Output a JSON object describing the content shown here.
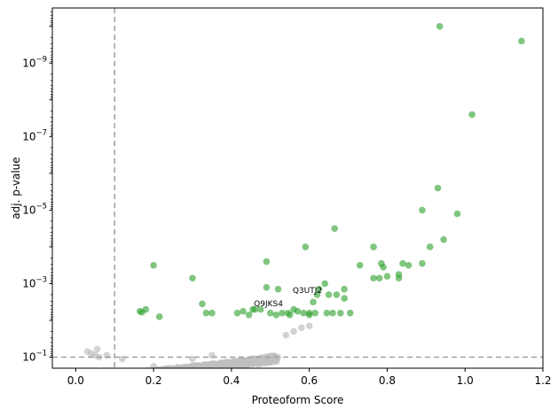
{
  "chart_data": {
    "type": "scatter",
    "title": "",
    "xlabel": "Proteoform Score",
    "ylabel": "adj. p-value",
    "xlim": [
      -0.06,
      1.2
    ],
    "ylim_log10": [
      -0.7,
      -10.5
    ],
    "y_scale": "log",
    "y_inverted": true,
    "grid": false,
    "x_ticks": [
      {
        "value": 0.0,
        "label": "0.0"
      },
      {
        "value": 0.2,
        "label": "0.2"
      },
      {
        "value": 0.4,
        "label": "0.4"
      },
      {
        "value": 0.6,
        "label": "0.6"
      },
      {
        "value": 0.8,
        "label": "0.8"
      },
      {
        "value": 1.0,
        "label": "1.0"
      },
      {
        "value": 1.2,
        "label": "1.2"
      }
    ],
    "y_ticks": [
      {
        "exp": -1,
        "base": "10",
        "sup": "−1"
      },
      {
        "exp": -3,
        "base": "10",
        "sup": "−3"
      },
      {
        "exp": -5,
        "base": "10",
        "sup": "−5"
      },
      {
        "exp": -7,
        "base": "10",
        "sup": "−7"
      },
      {
        "exp": -9,
        "base": "10",
        "sup": "−9"
      }
    ],
    "thresholds": {
      "x": 0.1,
      "y_log10": -1,
      "color": "#a0a0a0"
    },
    "colors": {
      "significant": "#2ca02c",
      "not_significant": "#c0c0c0"
    },
    "series": [
      {
        "color": "#2ca02c",
        "points": [
          [
            0.935,
            -10.0
          ],
          [
            1.145,
            -9.6
          ],
          [
            1.018,
            -7.6
          ],
          [
            0.93,
            -5.6
          ],
          [
            0.89,
            -5.0
          ],
          [
            0.98,
            -4.9
          ],
          [
            0.665,
            -4.5
          ],
          [
            0.945,
            -4.2
          ],
          [
            0.765,
            -4.0
          ],
          [
            0.91,
            -4.0
          ],
          [
            0.59,
            -4.0
          ],
          [
            0.49,
            -3.6
          ],
          [
            0.2,
            -3.5
          ],
          [
            0.785,
            -3.55
          ],
          [
            0.84,
            -3.55
          ],
          [
            0.855,
            -3.5
          ],
          [
            0.73,
            -3.5
          ],
          [
            0.89,
            -3.55
          ],
          [
            0.79,
            -3.45
          ],
          [
            0.3,
            -3.15
          ],
          [
            0.765,
            -3.15
          ],
          [
            0.8,
            -3.2
          ],
          [
            0.83,
            -3.25
          ],
          [
            0.83,
            -3.15
          ],
          [
            0.78,
            -3.15
          ],
          [
            0.64,
            -3.0
          ],
          [
            0.625,
            -2.85
          ],
          [
            0.52,
            -2.85
          ],
          [
            0.69,
            -2.85
          ],
          [
            0.49,
            -2.9
          ],
          [
            0.65,
            -2.7
          ],
          [
            0.67,
            -2.7
          ],
          [
            0.62,
            -2.7
          ],
          [
            0.325,
            -2.45
          ],
          [
            0.69,
            -2.6
          ],
          [
            0.61,
            -2.5
          ],
          [
            0.56,
            -2.3
          ],
          [
            0.66,
            -2.2
          ],
          [
            0.645,
            -2.2
          ],
          [
            0.5,
            -2.2
          ],
          [
            0.18,
            -2.3
          ],
          [
            0.165,
            -2.25
          ],
          [
            0.17,
            -2.22
          ],
          [
            0.335,
            -2.2
          ],
          [
            0.35,
            -2.2
          ],
          [
            0.415,
            -2.2
          ],
          [
            0.43,
            -2.25
          ],
          [
            0.46,
            -2.3
          ],
          [
            0.475,
            -2.3
          ],
          [
            0.455,
            -2.3
          ],
          [
            0.53,
            -2.2
          ],
          [
            0.545,
            -2.2
          ],
          [
            0.57,
            -2.25
          ],
          [
            0.585,
            -2.2
          ],
          [
            0.6,
            -2.2
          ],
          [
            0.615,
            -2.2
          ],
          [
            0.68,
            -2.2
          ],
          [
            0.705,
            -2.2
          ],
          [
            0.215,
            -2.1
          ],
          [
            0.445,
            -2.15
          ],
          [
            0.515,
            -2.15
          ],
          [
            0.55,
            -2.15
          ],
          [
            0.6,
            -2.15
          ]
        ]
      }
    ],
    "annotations": [
      {
        "text": "Q3UTJ2",
        "x": 0.595,
        "y_log10": -2.75
      },
      {
        "text": "Q9JKS4",
        "x": 0.495,
        "y_log10": -2.38
      }
    ]
  }
}
